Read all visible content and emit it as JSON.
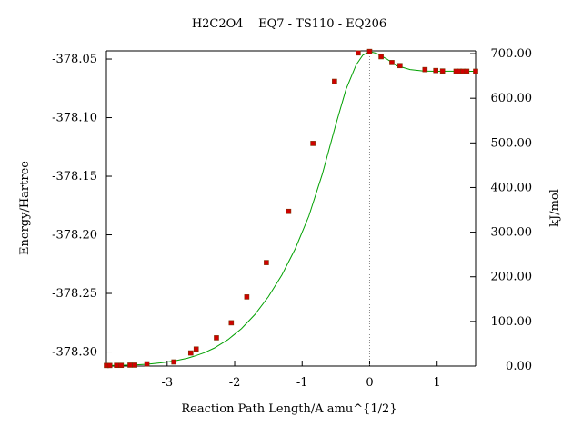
{
  "chart_data": {
    "type": "line",
    "title": "H2C2O4    EQ7 - TS110 - EQ206",
    "xlabel": "Reaction Path Length/A amu^{1/2}",
    "ylabel": "Energy/Hartree",
    "y2label": "kJ/mol",
    "xlim": [
      -3.9,
      1.57
    ],
    "ylim": [
      -378.312,
      -378.043
    ],
    "y2lim": [
      0.0,
      706.2
    ],
    "x_ticks": [
      -3,
      -2,
      -1,
      0,
      1
    ],
    "x_tick_labels": [
      "-3",
      "-2",
      "-1",
      "0",
      "1"
    ],
    "y_ticks": [
      -378.05,
      -378.1,
      -378.15,
      -378.2,
      -378.25,
      -378.3
    ],
    "y_tick_labels": [
      "-378.05",
      "-378.10",
      "-378.15",
      "-378.20",
      "-378.25",
      "-378.30"
    ],
    "y2_ticks": [
      0,
      100,
      200,
      300,
      400,
      500,
      600,
      700
    ],
    "y2_tick_labels": [
      "0.00",
      "100.00",
      "200.00",
      "300.00",
      "400.00",
      "500.00",
      "600.00",
      "700.00"
    ],
    "ts_marker_x": 0.0,
    "curve_color": "#00a000",
    "marker_color": "#d00000",
    "grid": false,
    "series": [
      {
        "x": [
          -3.9,
          -3.85,
          -3.75,
          -3.68,
          -3.55,
          -3.48,
          -3.3,
          -3.1,
          -2.9,
          -2.7,
          -2.6,
          -2.45,
          -2.3,
          -2.1,
          -1.9,
          -1.7,
          -1.5,
          -1.3,
          -1.1,
          -0.9,
          -0.7,
          -0.5,
          -0.35,
          -0.2,
          -0.1,
          0.0,
          0.1,
          0.25,
          0.4,
          0.6,
          0.8,
          1.0,
          1.2,
          1.4,
          1.57
        ],
        "y": [
          -378.3115,
          -378.3115,
          -378.3114,
          -378.3113,
          -378.3111,
          -378.311,
          -378.3104,
          -378.3093,
          -378.3077,
          -378.3053,
          -378.3036,
          -378.3006,
          -378.2966,
          -378.2895,
          -378.2801,
          -378.268,
          -378.2528,
          -378.2343,
          -378.2117,
          -378.1839,
          -378.148,
          -378.1057,
          -378.0759,
          -378.055,
          -378.0466,
          -378.0437,
          -378.045,
          -378.0498,
          -378.0556,
          -378.059,
          -378.0602,
          -378.0604,
          -378.0603,
          -378.0604,
          -378.0604
        ]
      }
    ],
    "points": {
      "x": [
        -3.9,
        -3.85,
        -3.75,
        -3.68,
        -3.55,
        -3.48,
        -3.3,
        -2.9,
        -2.65,
        -2.57,
        -2.27,
        -2.05,
        -1.82,
        -1.53,
        -1.2,
        -0.84,
        -0.52,
        -0.17,
        0.0,
        0.17,
        0.33,
        0.45,
        0.82,
        0.98,
        1.08,
        1.28,
        1.33,
        1.38,
        1.44,
        1.57
      ],
      "y": [
        -378.3115,
        -378.3115,
        -378.3114,
        -378.3114,
        -378.3112,
        -378.3112,
        -378.3101,
        -378.3085,
        -378.3008,
        -378.2975,
        -378.2879,
        -378.2751,
        -378.253,
        -378.2237,
        -378.18,
        -378.122,
        -378.069,
        -378.0448,
        -378.0435,
        -378.048,
        -378.053,
        -378.0556,
        -378.059,
        -378.0598,
        -378.0602,
        -378.0604,
        -378.0604,
        -378.0604,
        -378.0604,
        -378.0604
      ]
    }
  }
}
